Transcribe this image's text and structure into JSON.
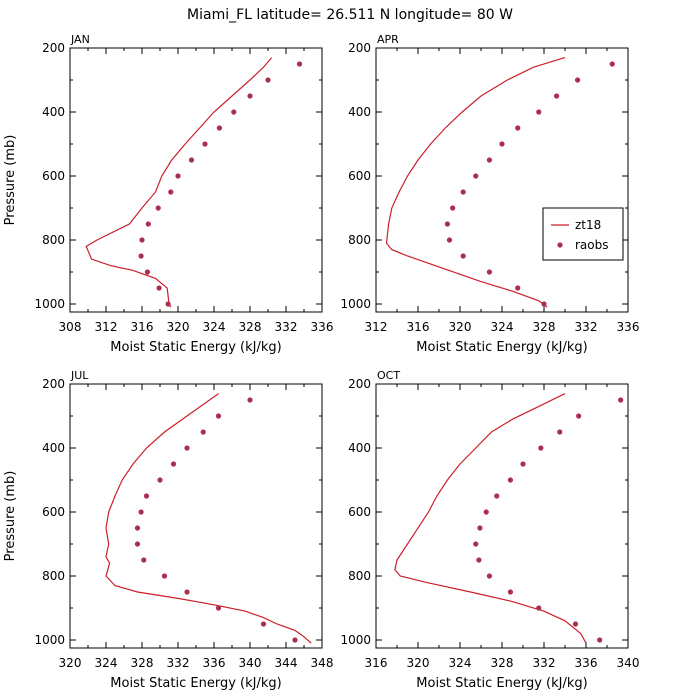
{
  "figure": {
    "title": "Miami_FL   latitude= 26.511 N longitude= 80 W"
  },
  "colors": {
    "model": "#cc1f2b",
    "obs": "#aa2f4f",
    "axis": "#000000"
  },
  "legend": {
    "entries": [
      "zt18",
      "raobs"
    ],
    "panel": "APR",
    "placement": "center-right"
  },
  "chart_data": [
    {
      "type": "line",
      "title": "JAN",
      "xlabel": "Moist Static Energy (kJ/kg)",
      "ylabel": "Pressure (mb)",
      "xlim": [
        308,
        336
      ],
      "ylim": [
        1025,
        200
      ],
      "xticks": [
        308,
        312,
        316,
        320,
        324,
        328,
        332,
        336
      ],
      "yticks": [
        200,
        400,
        600,
        800,
        1000
      ],
      "series": [
        {
          "name": "zt18",
          "style": "line",
          "points": [
            [
              330.4,
              230
            ],
            [
              329.5,
              260
            ],
            [
              328.0,
              300
            ],
            [
              326.0,
              350
            ],
            [
              324.0,
              400
            ],
            [
              322.4,
              450
            ],
            [
              320.8,
              500
            ],
            [
              319.3,
              550
            ],
            [
              318.2,
              600
            ],
            [
              317.5,
              650
            ],
            [
              316.0,
              700
            ],
            [
              314.6,
              750
            ],
            [
              311.0,
              800
            ],
            [
              309.8,
              820
            ],
            [
              310.4,
              860
            ],
            [
              312.5,
              880
            ],
            [
              315.0,
              895
            ],
            [
              317.5,
              920
            ],
            [
              318.8,
              950
            ],
            [
              319.0,
              1000
            ],
            [
              319.2,
              1010
            ]
          ]
        },
        {
          "name": "raobs",
          "style": "scatter",
          "points": [
            [
              333.5,
              250
            ],
            [
              330.0,
              300
            ],
            [
              328.0,
              350
            ],
            [
              326.2,
              400
            ],
            [
              324.6,
              450
            ],
            [
              323.0,
              500
            ],
            [
              321.5,
              550
            ],
            [
              320.0,
              600
            ],
            [
              319.2,
              650
            ],
            [
              317.8,
              700
            ],
            [
              316.7,
              750
            ],
            [
              316.0,
              800
            ],
            [
              315.9,
              850
            ],
            [
              316.6,
              900
            ],
            [
              317.9,
              950
            ],
            [
              318.9,
              1000
            ]
          ]
        }
      ]
    },
    {
      "type": "line",
      "title": "APR",
      "xlabel": "Moist Static Energy (kJ/kg)",
      "ylabel": "",
      "xlim": [
        312,
        336
      ],
      "ylim": [
        1025,
        200
      ],
      "xticks": [
        312,
        316,
        320,
        324,
        328,
        332,
        336
      ],
      "yticks": [
        200,
        400,
        600,
        800,
        1000
      ],
      "series": [
        {
          "name": "zt18",
          "style": "line",
          "points": [
            [
              330.0,
              230
            ],
            [
              327.0,
              260
            ],
            [
              324.5,
              300
            ],
            [
              322.0,
              350
            ],
            [
              320.2,
              400
            ],
            [
              318.6,
              450
            ],
            [
              317.2,
              500
            ],
            [
              316.0,
              550
            ],
            [
              315.0,
              600
            ],
            [
              314.2,
              650
            ],
            [
              313.5,
              700
            ],
            [
              313.2,
              750
            ],
            [
              313.0,
              810
            ],
            [
              313.5,
              830
            ],
            [
              315.0,
              850
            ],
            [
              318.5,
              890
            ],
            [
              322.0,
              930
            ],
            [
              325.0,
              960
            ],
            [
              327.5,
              990
            ],
            [
              328.3,
              1010
            ]
          ]
        },
        {
          "name": "raobs",
          "style": "scatter",
          "points": [
            [
              334.5,
              250
            ],
            [
              331.2,
              300
            ],
            [
              329.2,
              350
            ],
            [
              327.5,
              400
            ],
            [
              325.5,
              450
            ],
            [
              324.0,
              500
            ],
            [
              322.8,
              550
            ],
            [
              321.5,
              600
            ],
            [
              320.3,
              650
            ],
            [
              319.3,
              700
            ],
            [
              318.8,
              750
            ],
            [
              319.0,
              800
            ],
            [
              320.3,
              850
            ],
            [
              322.8,
              900
            ],
            [
              325.5,
              950
            ],
            [
              328.0,
              1000
            ]
          ]
        }
      ]
    },
    {
      "type": "line",
      "title": "JUL",
      "xlabel": "Moist Static Energy (kJ/kg)",
      "ylabel": "Pressure (mb)",
      "xlim": [
        320,
        348
      ],
      "ylim": [
        1025,
        200
      ],
      "xticks": [
        320,
        324,
        328,
        332,
        336,
        340,
        344,
        348
      ],
      "yticks": [
        200,
        400,
        600,
        800,
        1000
      ],
      "series": [
        {
          "name": "zt18",
          "style": "line",
          "points": [
            [
              336.5,
              230
            ],
            [
              333.0,
              300
            ],
            [
              330.5,
              350
            ],
            [
              328.5,
              400
            ],
            [
              327.0,
              450
            ],
            [
              325.8,
              500
            ],
            [
              325.0,
              550
            ],
            [
              324.3,
              600
            ],
            [
              324.0,
              650
            ],
            [
              324.3,
              700
            ],
            [
              324.0,
              740
            ],
            [
              324.4,
              760
            ],
            [
              324.0,
              800
            ],
            [
              325.0,
              830
            ],
            [
              327.5,
              850
            ],
            [
              332.0,
              870
            ],
            [
              336.0,
              890
            ],
            [
              339.5,
              910
            ],
            [
              341.5,
              930
            ],
            [
              343.0,
              950
            ],
            [
              345.0,
              970
            ],
            [
              346.0,
              990
            ],
            [
              346.8,
              1010
            ]
          ]
        },
        {
          "name": "raobs",
          "style": "scatter",
          "points": [
            [
              340.0,
              250
            ],
            [
              336.5,
              300
            ],
            [
              334.8,
              350
            ],
            [
              333.0,
              400
            ],
            [
              331.5,
              450
            ],
            [
              330.0,
              500
            ],
            [
              328.5,
              550
            ],
            [
              327.9,
              600
            ],
            [
              327.5,
              650
            ],
            [
              327.5,
              700
            ],
            [
              328.2,
              750
            ],
            [
              330.5,
              800
            ],
            [
              333.0,
              850
            ],
            [
              336.5,
              900
            ],
            [
              341.5,
              950
            ],
            [
              345.0,
              1000
            ]
          ]
        }
      ]
    },
    {
      "type": "line",
      "title": "OCT",
      "xlabel": "Moist Static Energy (kJ/kg)",
      "ylabel": "",
      "xlim": [
        316,
        340
      ],
      "ylim": [
        1025,
        200
      ],
      "xticks": [
        316,
        320,
        324,
        328,
        332,
        336,
        340
      ],
      "yticks": [
        200,
        400,
        600,
        800,
        1000
      ],
      "series": [
        {
          "name": "zt18",
          "style": "line",
          "points": [
            [
              334.0,
              230
            ],
            [
              331.5,
              270
            ],
            [
              329.0,
              310
            ],
            [
              327.0,
              350
            ],
            [
              325.5,
              400
            ],
            [
              324.0,
              450
            ],
            [
              322.8,
              500
            ],
            [
              321.8,
              550
            ],
            [
              321.0,
              600
            ],
            [
              319.8,
              660
            ],
            [
              319.0,
              700
            ],
            [
              318.0,
              750
            ],
            [
              317.8,
              780
            ],
            [
              318.3,
              800
            ],
            [
              320.8,
              820
            ],
            [
              325.0,
              850
            ],
            [
              329.0,
              880
            ],
            [
              332.0,
              910
            ],
            [
              334.0,
              940
            ],
            [
              335.5,
              980
            ],
            [
              336.0,
              1010
            ]
          ]
        },
        {
          "name": "raobs",
          "style": "scatter",
          "points": [
            [
              339.3,
              250
            ],
            [
              335.3,
              300
            ],
            [
              333.5,
              350
            ],
            [
              331.7,
              400
            ],
            [
              330.0,
              450
            ],
            [
              328.8,
              500
            ],
            [
              327.5,
              550
            ],
            [
              326.5,
              600
            ],
            [
              325.9,
              650
            ],
            [
              325.5,
              700
            ],
            [
              325.8,
              750
            ],
            [
              326.8,
              800
            ],
            [
              328.8,
              850
            ],
            [
              331.5,
              900
            ],
            [
              335.0,
              950
            ],
            [
              337.3,
              1000
            ]
          ]
        }
      ]
    }
  ]
}
